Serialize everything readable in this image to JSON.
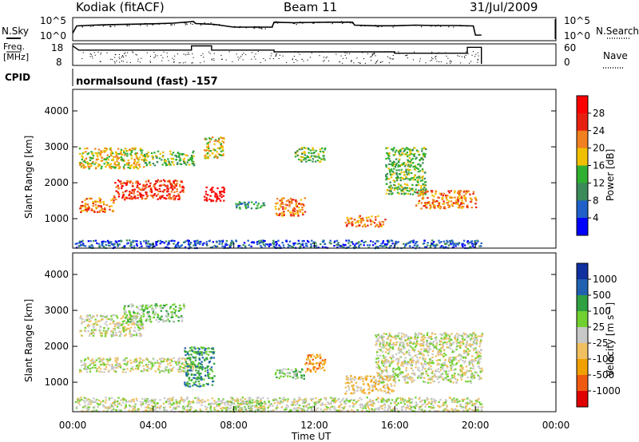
{
  "header": {
    "station": "Kodiak (fitACF)",
    "beam": "Beam 11",
    "date": "31/Jul/2009"
  },
  "left_labels": {
    "nsky": "N.Sky",
    "freq": "Freq.",
    "freq_unit": "[MHz]",
    "cpid": "CPID"
  },
  "right_labels": {
    "nsearch": "N.Search",
    "nave": "Nave"
  },
  "cpid_text": "normalsound (fast) -157",
  "colors": {
    "power": [
      "#0000ff",
      "#2060c8",
      "#3a8a5a",
      "#30b030",
      "#f0c000",
      "#f08020",
      "#e82010",
      "#ff0000"
    ],
    "velocity": [
      "#e00000",
      "#f05a10",
      "#f0a000",
      "#f0c060",
      "#c8c8c8",
      "#70d030",
      "#30a040",
      "#2060b0",
      "#1030a0"
    ],
    "ground": "#c0c0c0"
  },
  "chart_data": [
    {
      "type": "line",
      "name": "noise",
      "ylabels": [
        "10^5",
        "10^0"
      ],
      "ylabels_right": [
        "10^5",
        "10^0"
      ],
      "x_hours": [
        0,
        0.2,
        1,
        2,
        3,
        4,
        5,
        6,
        6.1,
        7,
        8,
        9,
        9.9,
        10,
        11,
        12,
        13,
        13.9,
        14,
        15,
        16,
        17,
        18,
        19,
        19.9,
        20,
        20.3
      ],
      "sky": [
        0.3,
        0.66,
        0.7,
        0.73,
        0.75,
        0.77,
        0.8,
        0.88,
        0.78,
        0.74,
        0.6,
        0.6,
        0.6,
        0.85,
        0.82,
        0.84,
        0.85,
        0.85,
        0.7,
        0.67,
        0.67,
        0.7,
        0.68,
        0.68,
        0.66,
        0.2,
        0.2
      ],
      "xlim": [
        0,
        24
      ]
    },
    {
      "type": "line",
      "name": "frequency-nave",
      "ylabels_left": [
        "18",
        "8"
      ],
      "ylabels_right": [
        "60",
        "0"
      ],
      "freq_steps": [
        [
          0,
          17.8
        ],
        [
          0.3,
          15.5
        ],
        [
          5.9,
          15.5
        ],
        [
          5.9,
          17.8
        ],
        [
          6.9,
          17.8
        ],
        [
          6.9,
          15.5
        ],
        [
          10,
          15.5
        ],
        [
          10,
          14.5
        ],
        [
          16,
          14.5
        ],
        [
          16,
          13.8
        ],
        [
          19.6,
          13.8
        ],
        [
          19.6,
          17
        ],
        [
          20.3,
          17
        ],
        [
          20.3,
          8
        ]
      ],
      "ylim": [
        8,
        18
      ],
      "xlim": [
        0,
        24
      ]
    },
    {
      "type": "heatmap",
      "name": "power",
      "ylabel": "Slant Range [km]",
      "yticks": [
        "1000",
        "2000",
        "3000",
        "4000"
      ],
      "ylim": [
        180,
        4600
      ],
      "colorbar_label": "Power [dB]",
      "colorbar_ticks": [
        "28",
        "24",
        "20",
        "16",
        "12",
        "8",
        "4"
      ],
      "xlim": [
        0,
        24
      ],
      "regions": [
        {
          "h0": 0.3,
          "h1": 3.5,
          "r0": 2400,
          "r1": 3000,
          "level": 4
        },
        {
          "h0": 0.3,
          "h1": 2,
          "r0": 1200,
          "r1": 1600,
          "level": 5
        },
        {
          "h0": 2,
          "h1": 5.5,
          "r0": 1550,
          "r1": 2100,
          "level": 6
        },
        {
          "h0": 3.5,
          "h1": 6,
          "r0": 2500,
          "r1": 2900,
          "level": 3
        },
        {
          "h0": 6.5,
          "h1": 7.5,
          "r0": 1500,
          "r1": 1900,
          "level": 7
        },
        {
          "h0": 6.5,
          "h1": 7.5,
          "r0": 2700,
          "r1": 3300,
          "level": 4
        },
        {
          "h0": 8,
          "h1": 9.5,
          "r0": 1300,
          "r1": 1500,
          "level": 2
        },
        {
          "h0": 10,
          "h1": 11.5,
          "r0": 1100,
          "r1": 1600,
          "level": 5
        },
        {
          "h0": 11,
          "h1": 12.5,
          "r0": 2600,
          "r1": 3000,
          "level": 3
        },
        {
          "h0": 13.5,
          "h1": 15.5,
          "r0": 800,
          "r1": 1100,
          "level": 5
        },
        {
          "h0": 15.5,
          "h1": 17.5,
          "r0": 1700,
          "r1": 3000,
          "level": 3
        },
        {
          "h0": 17,
          "h1": 20,
          "r0": 1300,
          "r1": 1800,
          "level": 5
        },
        {
          "h0": 0.1,
          "h1": 20.3,
          "r0": 200,
          "r1": 420,
          "level": 1
        }
      ]
    },
    {
      "type": "heatmap",
      "name": "velocity",
      "ylabel": "Slant Range [km]",
      "yticks": [
        "1000",
        "2000",
        "3000",
        "4000"
      ],
      "ylim": [
        180,
        4600
      ],
      "colorbar_label": "Velocity [m s⁻¹]",
      "colorbar_ticks": [
        "1000",
        "500",
        "100",
        "25",
        "-25",
        "-100",
        "-500",
        "-1000"
      ],
      "xlabel": "Time UT",
      "xticks": [
        "00:00",
        "04:00",
        "08:00",
        "12:00",
        "16:00",
        "20:00",
        "00:00"
      ],
      "xlim": [
        0,
        24
      ],
      "regions": [
        {
          "h0": 0.3,
          "h1": 3.5,
          "r0": 2300,
          "r1": 2900,
          "level": 4
        },
        {
          "h0": 2.5,
          "h1": 5.5,
          "r0": 2700,
          "r1": 3200,
          "level": 5
        },
        {
          "h0": 0.3,
          "h1": 6,
          "r0": 1300,
          "r1": 1700,
          "level": 4
        },
        {
          "h0": 5.5,
          "h1": 7,
          "r0": 900,
          "r1": 2000,
          "level": 6
        },
        {
          "h0": 7.5,
          "h1": 9.5,
          "r0": 200,
          "r1": 500,
          "level": 5
        },
        {
          "h0": 10,
          "h1": 11.5,
          "r0": 1100,
          "r1": 1400,
          "level": 5
        },
        {
          "h0": 11.5,
          "h1": 12.5,
          "r0": 1300,
          "r1": 1800,
          "level": 2
        },
        {
          "h0": 13.5,
          "h1": 16,
          "r0": 700,
          "r1": 1200,
          "level": 3
        },
        {
          "h0": 15,
          "h1": 20.3,
          "r0": 1000,
          "r1": 2400,
          "level": 4
        },
        {
          "h0": 0.1,
          "h1": 20.3,
          "r0": 200,
          "r1": 600,
          "level": 4
        }
      ]
    }
  ]
}
